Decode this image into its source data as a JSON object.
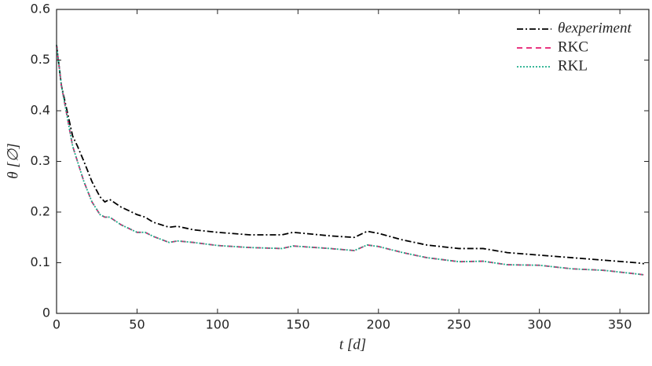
{
  "chart_data": {
    "type": "line",
    "x_label": "t [d]",
    "y_label": "θ [∅]",
    "x": [
      0,
      3,
      10,
      13,
      17,
      22,
      27,
      30,
      33,
      40,
      50,
      55,
      60,
      70,
      75,
      85,
      100,
      120,
      140,
      147,
      170,
      185,
      193,
      200,
      215,
      230,
      250,
      265,
      280,
      300,
      320,
      340,
      360,
      365
    ],
    "series": [
      {
        "name": "θexperiment",
        "color": "#000000",
        "style": "dashdot",
        "values": [
          0.53,
          0.45,
          0.35,
          0.33,
          0.3,
          0.26,
          0.23,
          0.22,
          0.225,
          0.21,
          0.195,
          0.19,
          0.18,
          0.17,
          0.172,
          0.165,
          0.16,
          0.155,
          0.155,
          0.16,
          0.153,
          0.15,
          0.162,
          0.158,
          0.145,
          0.135,
          0.128,
          0.128,
          0.12,
          0.115,
          0.11,
          0.105,
          0.1,
          0.098
        ]
      },
      {
        "name": "RKC",
        "color": "#e6196e",
        "style": "dashed",
        "values": [
          0.53,
          0.45,
          0.33,
          0.3,
          0.26,
          0.22,
          0.195,
          0.19,
          0.19,
          0.175,
          0.16,
          0.16,
          0.152,
          0.14,
          0.143,
          0.14,
          0.134,
          0.13,
          0.128,
          0.133,
          0.128,
          0.124,
          0.135,
          0.132,
          0.12,
          0.11,
          0.102,
          0.103,
          0.096,
          0.095,
          0.088,
          0.085,
          0.078,
          0.076
        ]
      },
      {
        "name": "RKL",
        "color": "#1fae8c",
        "style": "dotted",
        "values": [
          0.53,
          0.45,
          0.33,
          0.3,
          0.26,
          0.22,
          0.195,
          0.19,
          0.19,
          0.175,
          0.16,
          0.16,
          0.152,
          0.14,
          0.143,
          0.14,
          0.134,
          0.13,
          0.128,
          0.133,
          0.128,
          0.124,
          0.135,
          0.132,
          0.12,
          0.11,
          0.102,
          0.103,
          0.096,
          0.095,
          0.088,
          0.085,
          0.078,
          0.076
        ]
      }
    ],
    "xlim": [
      0,
      368
    ],
    "xticks": [
      0,
      50,
      100,
      150,
      200,
      250,
      300,
      350
    ],
    "ylim": [
      0,
      0.6
    ],
    "yticks": [
      0,
      0.1,
      0.2,
      0.3,
      0.4,
      0.5,
      0.6
    ],
    "legend": "top-right"
  }
}
